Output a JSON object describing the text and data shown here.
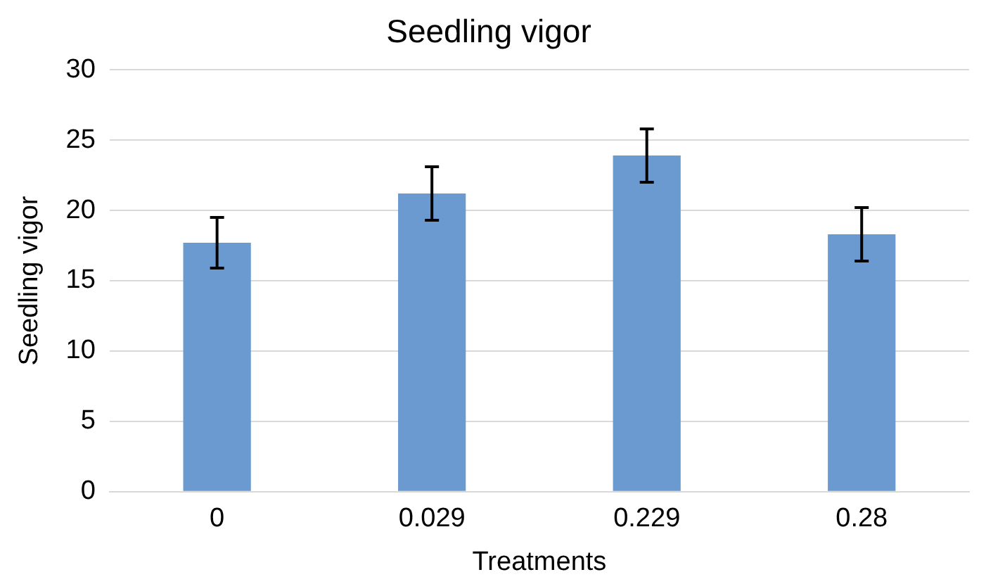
{
  "chart_data": {
    "type": "bar",
    "title": "Seedling vigor",
    "xlabel": "Treatments",
    "ylabel": "Seedling vigor",
    "categories": [
      "0",
      "0.029",
      "0.229",
      "0.28"
    ],
    "values": [
      17.7,
      21.2,
      23.9,
      18.3
    ],
    "errors": [
      1.8,
      1.9,
      1.9,
      1.9
    ],
    "color": "#6a9ad0",
    "ylim": [
      0,
      30
    ],
    "yticks": [
      0,
      5,
      10,
      15,
      20,
      25,
      30
    ],
    "grid": "y",
    "legend": false
  }
}
